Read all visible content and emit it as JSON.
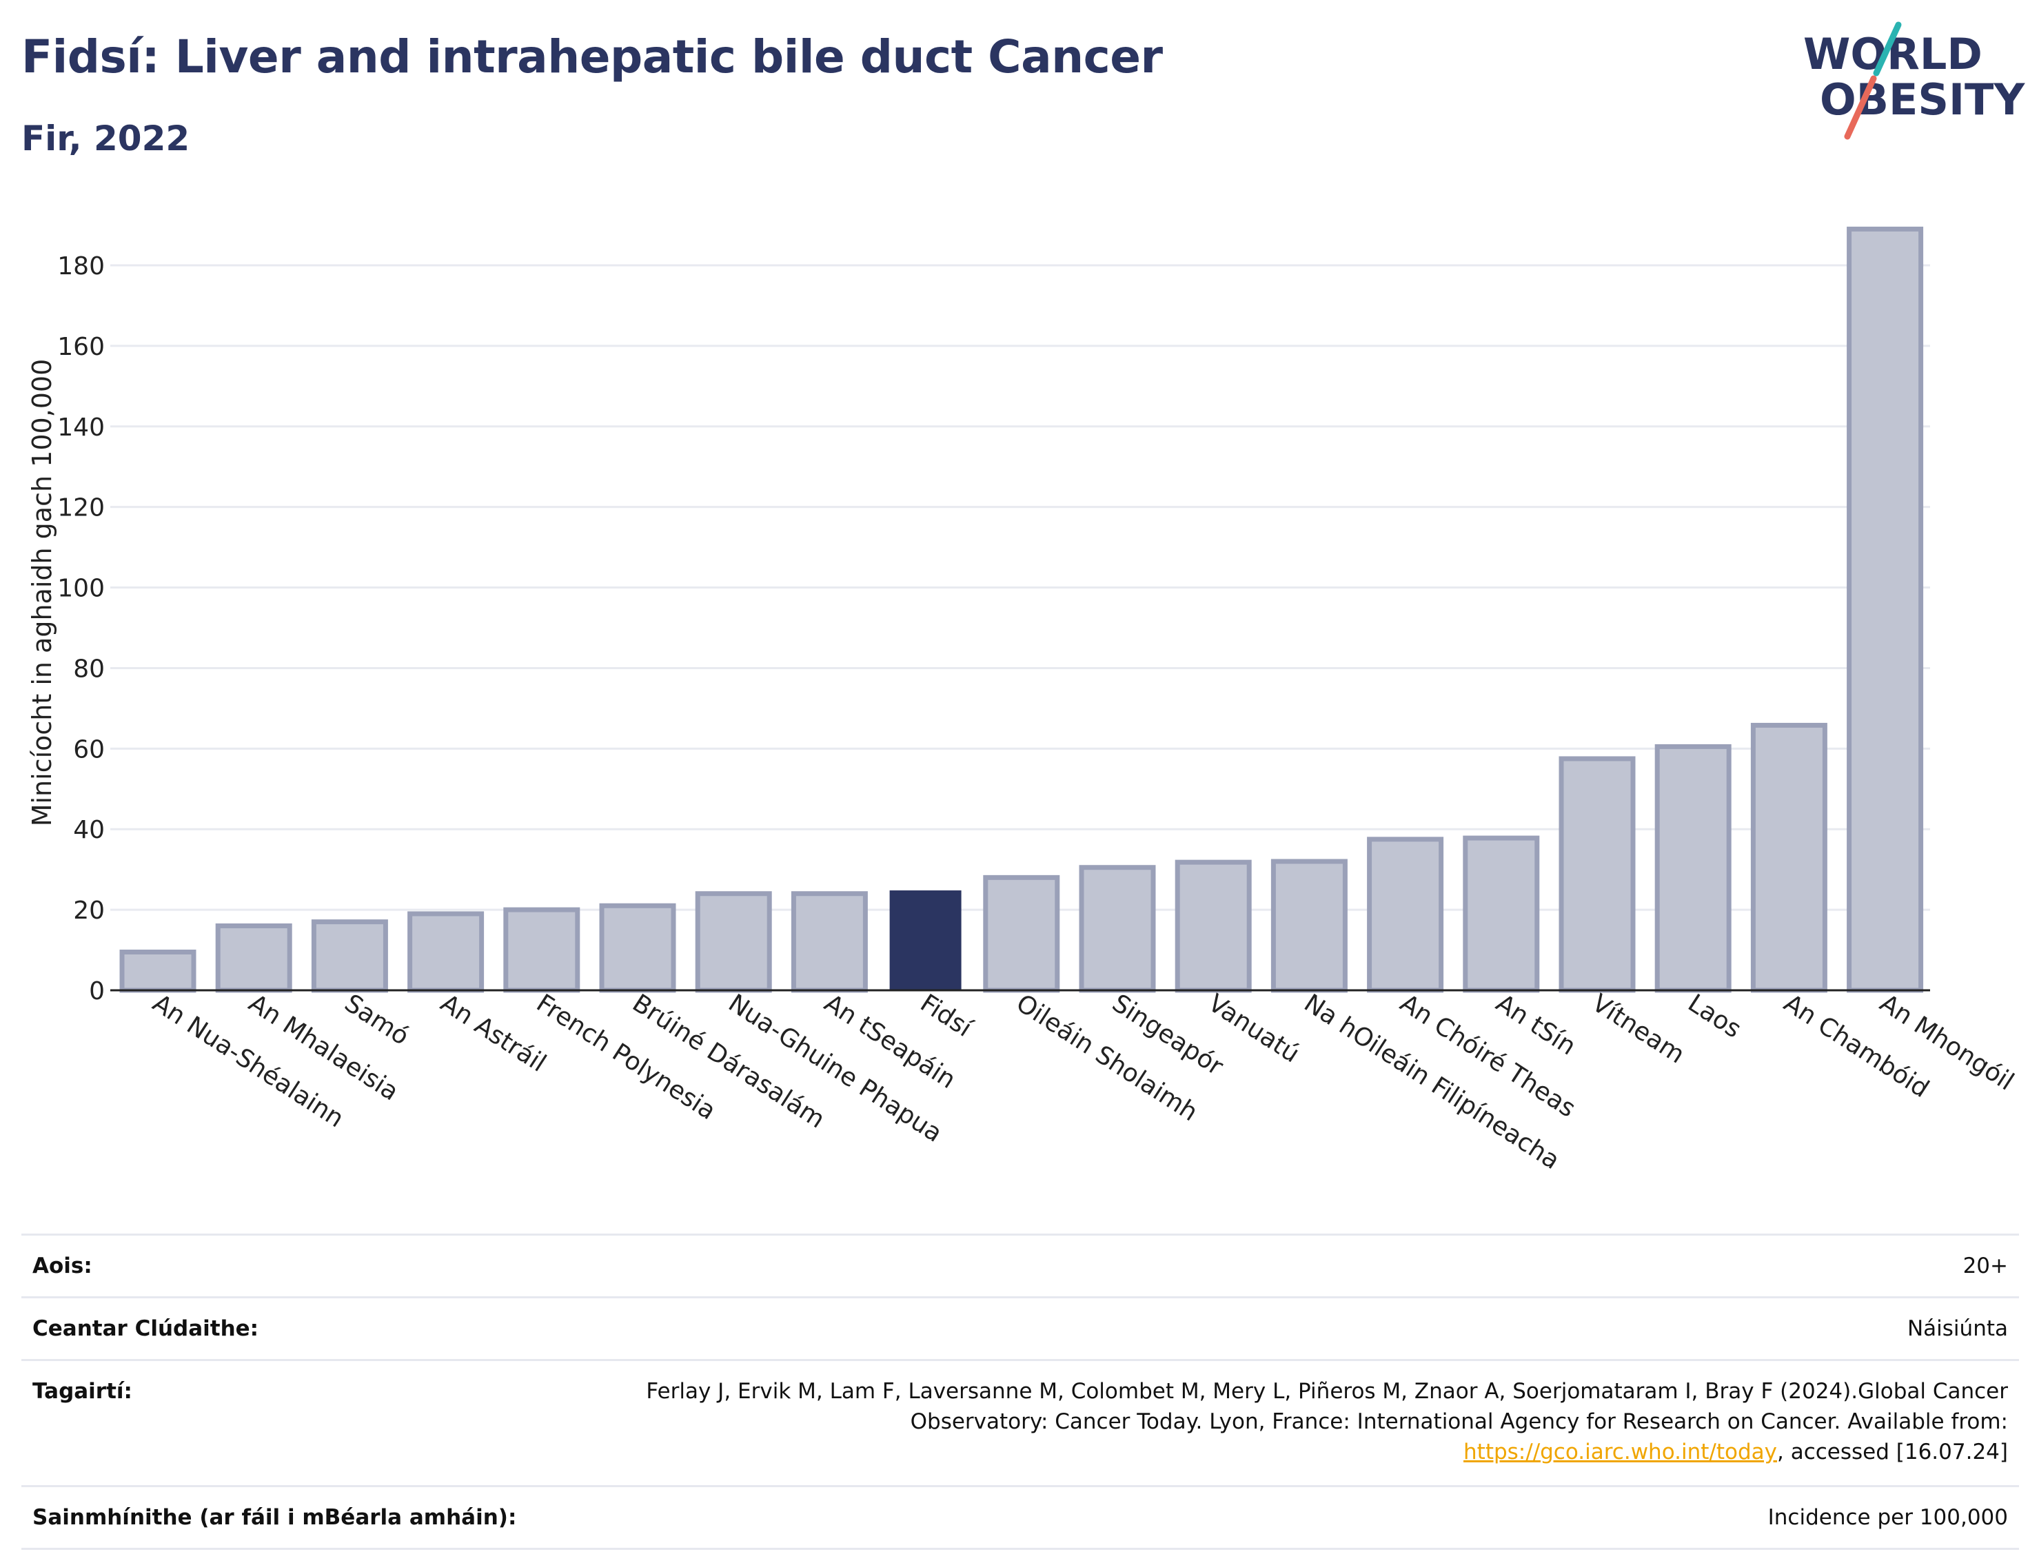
{
  "header": {
    "title": "Fidsí: Liver and intrahepatic bile duct Cancer",
    "subtitle": "Fir, 2022"
  },
  "logo": {
    "line1": "WORLD",
    "line2": "OBESITY",
    "accent_teal": "#2ab3b1",
    "accent_red": "#e8695a",
    "text_color": "#2b3561"
  },
  "chart_data": {
    "type": "bar",
    "ylabel": "Minicíocht in aghaidh gach 100,000",
    "xlabel": "",
    "ylim": [
      0,
      190
    ],
    "yticks": [
      0,
      20,
      40,
      60,
      80,
      100,
      120,
      140,
      160,
      180
    ],
    "grid": true,
    "categories": [
      "An Nua-Shéalainn",
      "An Mhalaeisia",
      "Samó",
      "An Astráil",
      "French Polynesia",
      "Brúiné Dárasalám",
      "Nua-Ghuine Phapua",
      "An tSeapáin",
      "Fidsí",
      "Oileáin Sholaimh",
      "Singeapór",
      "Vanuatú",
      "Na hOileáin Filipíneacha",
      "An Chóiré Theas",
      "An tSín",
      "Vítneam",
      "Laos",
      "An Chambóid",
      "An Mhongóil"
    ],
    "values": [
      9.5,
      16,
      17,
      19,
      20,
      21,
      24,
      24,
      24.8,
      28,
      30.5,
      31.8,
      32,
      37.5,
      37.8,
      57.5,
      60.5,
      65.8,
      189
    ],
    "highlight": "Fidsí",
    "colors": {
      "bar": "#c0c4d2",
      "bar_edge": "#9aa0b8",
      "highlight": "#2b3561",
      "grid": "#e8eaf0",
      "axis": "#222222"
    }
  },
  "info": {
    "age_label": "Aois:",
    "age_value": "20+",
    "area_label": "Ceantar Clúdaithe:",
    "area_value": "Náisiúnta",
    "refs_label": "Tagairtí:",
    "refs_text": "Ferlay J, Ervik M, Lam F, Laversanne M, Colombet M, Mery L, Piñeros M, Znaor A, Soerjomataram I, Bray F (2024).Global Cancer Observatory: Cancer Today. Lyon, France: International Agency for Research on Cancer. Available from: ",
    "refs_link": "https://gco.iarc.who.int/today",
    "refs_suffix": ", accessed [16.07.24]",
    "defs_label": "Sainmhínithe (ar fáil i mBéarla amháin):",
    "defs_value": "Incidence per 100,000"
  }
}
